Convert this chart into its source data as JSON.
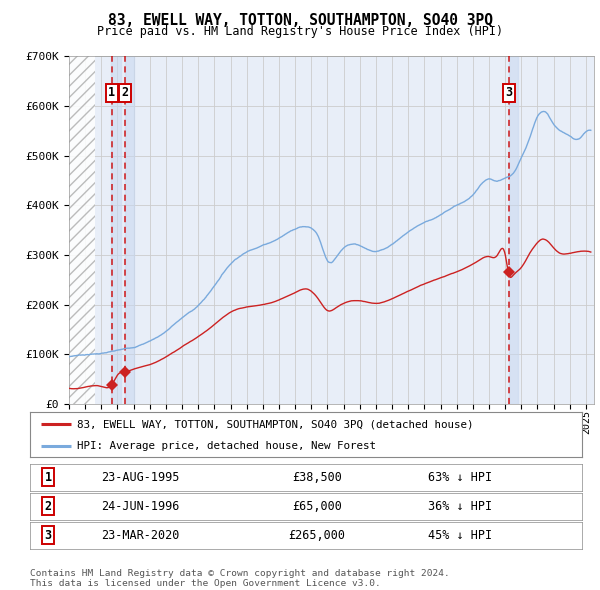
{
  "title": "83, EWELL WAY, TOTTON, SOUTHAMPTON, SO40 3PQ",
  "subtitle": "Price paid vs. HM Land Registry's House Price Index (HPI)",
  "ylim": [
    0,
    700000
  ],
  "xlim_start": 1993.0,
  "xlim_end": 2025.5,
  "yticks": [
    0,
    100000,
    200000,
    300000,
    400000,
    500000,
    600000,
    700000
  ],
  "ytick_labels": [
    "£0",
    "£100K",
    "£200K",
    "£300K",
    "£400K",
    "£500K",
    "£600K",
    "£700K"
  ],
  "background_color": "#ffffff",
  "plot_bg_color": "#e8eef8",
  "hatch_end_year": 1994.6,
  "sale_dates": [
    1995.644,
    1996.479,
    2020.228
  ],
  "sale_prices": [
    38500,
    65000,
    265000
  ],
  "sale_labels": [
    "1",
    "2",
    "3"
  ],
  "vline_color": "#cc0000",
  "sale_marker_color": "#cc2222",
  "legend_red_label": "83, EWELL WAY, TOTTON, SOUTHAMPTON, SO40 3PQ (detached house)",
  "legend_blue_label": "HPI: Average price, detached house, New Forest",
  "table_rows": [
    {
      "num": "1",
      "date": "23-AUG-1995",
      "price": "£38,500",
      "hpi": "63% ↓ HPI"
    },
    {
      "num": "2",
      "date": "24-JUN-1996",
      "price": "£65,000",
      "hpi": "36% ↓ HPI"
    },
    {
      "num": "3",
      "date": "23-MAR-2020",
      "price": "£265,000",
      "hpi": "45% ↓ HPI"
    }
  ],
  "footer": "Contains HM Land Registry data © Crown copyright and database right 2024.\nThis data is licensed under the Open Government Licence v3.0.",
  "red_line_color": "#cc2222",
  "blue_line_color": "#7aaadd",
  "grid_color": "#cccccc",
  "highlight_bg_color": "#c8d8f0"
}
